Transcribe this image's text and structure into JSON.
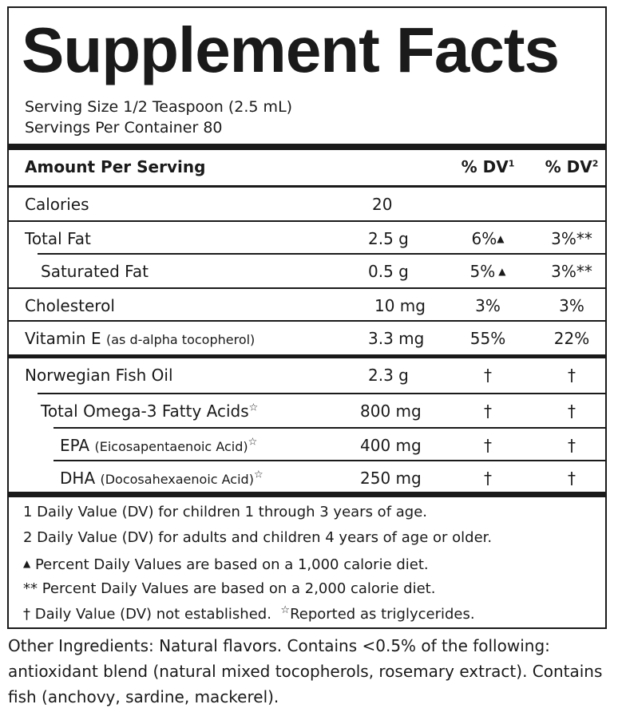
{
  "title": "Supplement Facts",
  "serving_size": "Serving Size 1/2 Teaspoon (2.5 mL)",
  "servings_per_container": "Servings Per Container 80",
  "header": {
    "amount_per_serving": "Amount Per Serving",
    "dv1": "% DV",
    "dv1_sup": "1",
    "dv2": "% DV",
    "dv2_sup": "2"
  },
  "rows": [
    {
      "name": "Calories",
      "amount": "20",
      "dv1": "",
      "dv2": ""
    },
    {
      "name": "Total Fat",
      "amount": "2.5 g",
      "dv1": "6%",
      "dv1_mark": "▲",
      "dv2": "3%**"
    },
    {
      "name": "Saturated Fat",
      "amount": "0.5 g",
      "dv1": "5%",
      "dv1_mark": "▲",
      "dv2": "3%**"
    },
    {
      "name": "Cholesterol",
      "amount": "10 mg",
      "dv1": "3%",
      "dv2": "3%"
    },
    {
      "name": "Vitamin E",
      "name_detail": "(as d-alpha tocopherol)",
      "amount": "3.3 mg",
      "dv1": "55%",
      "dv2": "22%"
    },
    {
      "name": "Norwegian Fish Oil",
      "amount": "2.3 g",
      "dv1": "†",
      "dv2": "†"
    },
    {
      "name": "Total Omega-3 Fatty Acids",
      "star": "☆",
      "amount": "800 mg",
      "dv1": "†",
      "dv2": "†"
    },
    {
      "name": "EPA",
      "name_detail": "(Eicosapentaenoic Acid)",
      "star": "☆",
      "amount": "400 mg",
      "dv1": "†",
      "dv2": "†"
    },
    {
      "name": "DHA",
      "name_detail": "(Docosahexaenoic Acid)",
      "star": "☆",
      "amount": "250 mg",
      "dv1": "†",
      "dv2": "†"
    }
  ],
  "footnotes": {
    "fn1": "1 Daily Value (DV) for children 1 through 3 years of age.",
    "fn2": "2 Daily Value (DV) for adults and children 4 years of age or older.",
    "fn3_mark": "▲",
    "fn3": " Percent Daily Values are based on a 1,000 calorie diet.",
    "fn4": "** Percent Daily Values are based on a 2,000 calorie diet.",
    "fn5": "† Daily Value (DV) not established.",
    "fn5_star": "☆",
    "fn5_b": "Reported as triglycerides."
  },
  "other_ingredients": "Other Ingredients: Natural flavors. Contains <0.5% of the following: antioxidant blend (natural mixed tocopherols, rosemary extract). Contains fish (anchovy, sardine, mackerel)."
}
